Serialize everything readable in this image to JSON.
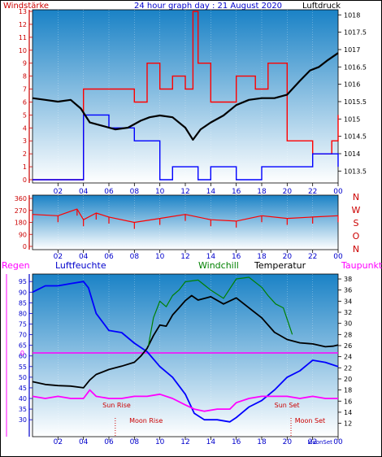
{
  "header": {
    "left_label": "Windstärke",
    "title": "24 hour graph day : 21 August 2020",
    "right_label": "Luftdruck"
  },
  "colors": {
    "axis_red": "#cc0000",
    "axis_blue": "#0000cc",
    "magenta": "#ff00ff",
    "green": "#008000",
    "bg_top": "#1a82c6",
    "bg_bottom": "#ffffff",
    "frame": "#000000",
    "sun_red": "#cc0000"
  },
  "chart_data": [
    {
      "name": "wind-pressure",
      "type": "line",
      "x_ticks": [
        "02",
        "04",
        "06",
        "08",
        "10",
        "12",
        "14",
        "16",
        "18",
        "20",
        "22",
        "00"
      ],
      "y_left": {
        "label": "Windstärke",
        "ticks": [
          "0",
          "1",
          "2",
          "3",
          "4",
          "5",
          "6",
          "7",
          "8",
          "9",
          "10",
          "11",
          "12",
          "13"
        ],
        "range": [
          0,
          13
        ]
      },
      "y_right": {
        "label": "Luftdruck",
        "ticks": [
          "1013.5",
          "1014",
          "1014.5",
          "1015",
          "1015.5",
          "1016",
          "1016.5",
          "1017",
          "1017.5",
          "1018"
        ],
        "range": [
          1013.25,
          1018.1
        ]
      },
      "series": [
        {
          "color": "#000000",
          "axis": "right",
          "x": [
            0,
            1,
            2,
            3,
            3.8,
            4.5,
            5.5,
            6.5,
            7.5,
            8.5,
            9.2,
            10,
            11,
            12,
            12.6,
            13.2,
            14,
            15,
            16,
            17,
            18,
            19,
            20,
            21,
            21.8,
            22.5,
            23.2,
            24
          ],
          "values": [
            1015.6,
            1015.55,
            1015.5,
            1015.55,
            1015.3,
            1014.9,
            1014.8,
            1014.7,
            1014.75,
            1014.95,
            1015.05,
            1015.1,
            1015.05,
            1014.75,
            1014.4,
            1014.7,
            1014.9,
            1015.1,
            1015.4,
            1015.55,
            1015.6,
            1015.6,
            1015.7,
            1016.1,
            1016.4,
            1016.5,
            1016.7,
            1016.9
          ]
        },
        {
          "color": "#ff0000",
          "axis": "left",
          "x": [
            0,
            3.9,
            4.0,
            6,
            8,
            9,
            10,
            11,
            12,
            12.6,
            13,
            14,
            16,
            17.5,
            18.5,
            20,
            22,
            23.5,
            24
          ],
          "values": [
            0,
            0,
            7,
            7,
            6,
            9,
            7,
            8,
            7,
            13,
            9,
            6,
            8,
            7,
            9,
            3,
            2,
            3,
            5
          ]
        },
        {
          "color": "#0000ff",
          "axis": "left",
          "x": [
            0,
            3.9,
            4.0,
            6,
            8,
            9.5,
            10,
            11,
            12,
            13,
            14,
            16,
            18,
            20,
            22,
            24
          ],
          "values": [
            0,
            0,
            5,
            4,
            3,
            3,
            0,
            1,
            1,
            0,
            1,
            0,
            1,
            1,
            2,
            1
          ]
        }
      ]
    },
    {
      "name": "wind-direction",
      "type": "scatter",
      "x_ticks": [
        "02",
        "04",
        "06",
        "08",
        "10",
        "12",
        "14",
        "16",
        "18",
        "20",
        "22",
        "00"
      ],
      "y_ticks": [
        "360",
        "270",
        "180",
        "90",
        "0"
      ],
      "y_range": [
        0,
        360
      ],
      "compass": [
        "N",
        "W",
        "S",
        "O",
        "N"
      ],
      "series": [
        {
          "color": "#ff0000",
          "x": [
            0,
            2,
            3.5,
            4,
            5,
            6,
            8,
            10,
            12,
            14,
            16,
            18,
            20,
            22,
            24
          ],
          "values": [
            240,
            230,
            280,
            200,
            250,
            220,
            180,
            210,
            240,
            200,
            190,
            230,
            210,
            220,
            230
          ]
        }
      ]
    },
    {
      "name": "temp-humidity",
      "type": "line",
      "x_ticks": [
        "02",
        "04",
        "06",
        "08",
        "10",
        "12",
        "14",
        "16",
        "18",
        "20",
        "22",
        "00"
      ],
      "y_left": {
        "label": "Luftfeuchte",
        "ticks": [
          "30",
          "35",
          "40",
          "45",
          "50",
          "55",
          "60",
          "65",
          "70",
          "75",
          "80",
          "85",
          "90",
          "95"
        ],
        "range": [
          27,
          97
        ]
      },
      "y_right": {
        "label": "Temperatur",
        "ticks": [
          "12",
          "14",
          "16",
          "18",
          "20",
          "22",
          "24",
          "26",
          "28",
          "30",
          "32",
          "34",
          "36",
          "38"
        ],
        "range": [
          11.5,
          38.3
        ]
      },
      "labels": {
        "regen": "Regen",
        "rain_zero": "0",
        "windchill": "Windchill",
        "taupunkt": "Taupunkt",
        "sun_rise": "Sun Rise",
        "moon_rise": "Moon Rise",
        "sun_set": "Sun Set",
        "moon_set": "Moon Set",
        "moon_set_axis": "MoonSet"
      },
      "series": [
        {
          "color": "#0000ff",
          "axis": "left",
          "x": [
            0,
            1,
            2,
            3,
            4,
            4.4,
            5,
            6,
            7,
            8,
            9,
            10,
            11,
            12,
            12.7,
            13.5,
            14.5,
            15.5,
            16,
            17,
            18,
            19,
            20,
            21,
            22,
            23,
            24
          ],
          "values": [
            90,
            93,
            93,
            94,
            95,
            92,
            80,
            72,
            71,
            66,
            62,
            55,
            50,
            42,
            33,
            30,
            30,
            29,
            31,
            36,
            39,
            44,
            50,
            53,
            58,
            57,
            55
          ]
        },
        {
          "color": "#000000",
          "axis": "right",
          "x": [
            0,
            1,
            2,
            3,
            4,
            4.5,
            5,
            6,
            7,
            8,
            8.5,
            9,
            9.5,
            10,
            10.5,
            11,
            11.5,
            12,
            12.5,
            13,
            14,
            15,
            16,
            17,
            18,
            19,
            20,
            21,
            22,
            23,
            23.6,
            24
          ],
          "values": [
            19.5,
            19,
            18.8,
            18.7,
            18.4,
            19.8,
            20.8,
            21.7,
            22.3,
            23.0,
            24.1,
            25.5,
            27.8,
            29.7,
            29.5,
            31.5,
            32.8,
            34.1,
            35.0,
            34.2,
            34.8,
            33.5,
            34.6,
            32.8,
            31,
            28.4,
            27.1,
            26.5,
            26.3,
            25.8,
            25.9,
            26.1
          ]
        },
        {
          "color": "#008000",
          "axis": "right",
          "x": [
            9.1,
            9.5,
            10,
            10.5,
            11,
            11.5,
            12,
            13,
            14,
            15,
            16,
            17,
            18,
            18.5,
            19.1,
            19.7,
            20.4
          ],
          "values": [
            26,
            31,
            34,
            33,
            35,
            36,
            37.5,
            37.8,
            36,
            34.5,
            38,
            38.3,
            36.5,
            35,
            33.5,
            32.8,
            28
          ]
        },
        {
          "color": "#ff00ff",
          "axis": "left",
          "x": [
            0,
            1,
            2,
            3,
            4,
            4.5,
            5,
            6,
            7,
            8,
            9,
            10,
            11,
            12,
            12.7,
            13.5,
            14.5,
            15.5,
            16,
            17,
            18,
            19,
            20,
            21,
            22,
            23,
            24
          ],
          "values": [
            41,
            40,
            41,
            40,
            40,
            44,
            41,
            40,
            40,
            41,
            41,
            42,
            40,
            37,
            35,
            34,
            35,
            35,
            38,
            40,
            41,
            41,
            41,
            40,
            41,
            40,
            40
          ]
        }
      ]
    }
  ]
}
